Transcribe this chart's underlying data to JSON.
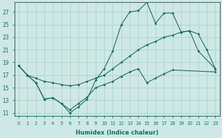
{
  "xlabel": "Humidex (Indice chaleur)",
  "background_color": "#cde8e5",
  "grid_color": "#a8ceca",
  "line_color": "#1a6b62",
  "xlim": [
    -0.5,
    23.5
  ],
  "ylim": [
    10.5,
    28.5
  ],
  "xticks": [
    0,
    1,
    2,
    3,
    4,
    5,
    6,
    7,
    8,
    9,
    10,
    11,
    12,
    13,
    14,
    15,
    16,
    17,
    18,
    19,
    20,
    21,
    22,
    23
  ],
  "yticks": [
    11,
    13,
    15,
    17,
    19,
    21,
    23,
    25,
    27
  ],
  "s1_x": [
    0,
    1,
    2,
    3,
    4,
    5,
    6,
    7,
    8,
    9,
    10,
    11,
    12,
    13,
    14,
    15,
    16,
    17,
    18,
    19,
    20,
    21,
    23
  ],
  "s1_y": [
    18.5,
    17.0,
    15.8,
    13.2,
    13.4,
    12.5,
    11.0,
    12.0,
    13.2,
    16.2,
    18.0,
    20.8,
    25.0,
    27.0,
    27.2,
    28.5,
    25.2,
    26.8,
    26.8,
    23.8,
    24.0,
    20.8,
    18.0
  ],
  "s2_x": [
    0,
    1,
    2,
    3,
    4,
    5,
    6,
    7,
    8,
    9,
    10,
    11,
    12,
    13,
    14,
    15,
    16,
    17,
    18,
    19,
    20,
    21,
    22,
    23
  ],
  "s2_y": [
    18.5,
    17.0,
    16.5,
    16.0,
    15.8,
    15.5,
    15.3,
    15.5,
    16.0,
    16.5,
    17.0,
    18.0,
    19.0,
    20.0,
    21.0,
    21.8,
    22.3,
    23.0,
    23.3,
    23.8,
    24.0,
    23.5,
    21.0,
    18.0
  ],
  "s3_x": [
    0,
    1,
    2,
    3,
    4,
    5,
    6,
    7,
    8,
    9,
    10,
    11,
    12,
    13,
    14,
    15,
    16,
    17,
    18,
    23
  ],
  "s3_y": [
    18.5,
    17.0,
    15.8,
    13.2,
    13.4,
    12.5,
    11.5,
    12.5,
    13.5,
    15.0,
    15.5,
    16.0,
    16.8,
    17.5,
    18.0,
    15.8,
    16.5,
    17.2,
    17.8,
    17.5
  ]
}
